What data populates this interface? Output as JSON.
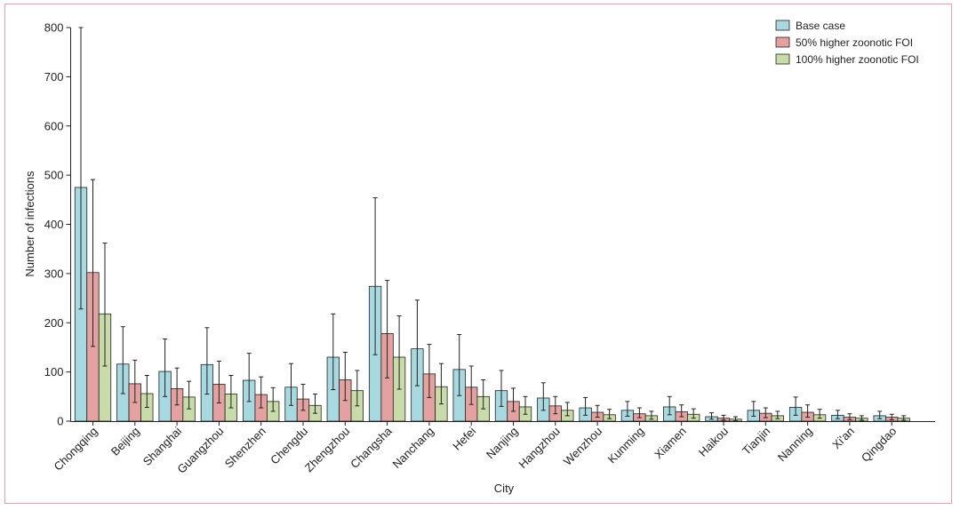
{
  "chart_data": {
    "type": "bar",
    "xlabel": "City",
    "ylabel": "Number of infections",
    "ylim": [
      0,
      800
    ],
    "yticks": [
      0,
      100,
      200,
      300,
      400,
      500,
      600,
      700,
      800
    ],
    "grid": false,
    "legend_position": "top-right",
    "categories": [
      "Chongqing",
      "Beijing",
      "Shanghai",
      "Guangzhou",
      "Shenzhen",
      "Chengdu",
      "Zhengzhou",
      "Changsha",
      "Nanchang",
      "Hefei",
      "Nanjing",
      "Hangzhou",
      "Wenzhou",
      "Kunming",
      "Xiamen",
      "Haikou",
      "Tianjin",
      "Nanning",
      "Xi'an",
      "Qingdao"
    ],
    "series": [
      {
        "name": "Base case",
        "color": "#a8d8e0",
        "values": [
          475,
          116,
          101,
          115,
          83,
          69,
          130,
          274,
          147,
          105,
          62,
          47,
          27,
          22,
          29,
          9,
          22,
          28,
          12,
          11
        ],
        "err_upper": [
          800,
          192,
          167,
          190,
          138,
          117,
          218,
          454,
          246,
          176,
          103,
          78,
          48,
          40,
          50,
          17,
          40,
          49,
          22,
          20
        ],
        "err_lower": [
          228,
          56,
          50,
          55,
          40,
          32,
          64,
          135,
          72,
          52,
          30,
          22,
          12,
          10,
          13,
          4,
          10,
          12,
          5,
          5
        ]
      },
      {
        "name": "50% higher zoonotic FOI",
        "color": "#e3a1a0",
        "values": [
          302,
          76,
          66,
          75,
          54,
          45,
          84,
          178,
          96,
          69,
          40,
          31,
          18,
          15,
          19,
          6,
          16,
          18,
          8,
          8
        ],
        "err_upper": [
          491,
          124,
          108,
          122,
          90,
          75,
          140,
          286,
          156,
          112,
          67,
          50,
          32,
          27,
          33,
          12,
          27,
          33,
          15,
          14
        ],
        "err_lower": [
          152,
          38,
          33,
          37,
          27,
          22,
          42,
          88,
          48,
          34,
          20,
          15,
          8,
          7,
          9,
          2,
          7,
          8,
          3,
          3
        ]
      },
      {
        "name": "100% higher zoonotic FOI",
        "color": "#c9dba8",
        "values": [
          218,
          56,
          49,
          55,
          40,
          32,
          62,
          130,
          70,
          50,
          29,
          22,
          13,
          11,
          14,
          4,
          11,
          13,
          6,
          6
        ],
        "err_upper": [
          362,
          93,
          81,
          93,
          68,
          55,
          103,
          214,
          117,
          84,
          50,
          38,
          24,
          20,
          25,
          9,
          20,
          24,
          11,
          11
        ],
        "err_lower": [
          112,
          28,
          25,
          27,
          20,
          16,
          31,
          65,
          35,
          25,
          14,
          11,
          5,
          4,
          6,
          1,
          5,
          6,
          2,
          2
        ]
      }
    ]
  }
}
